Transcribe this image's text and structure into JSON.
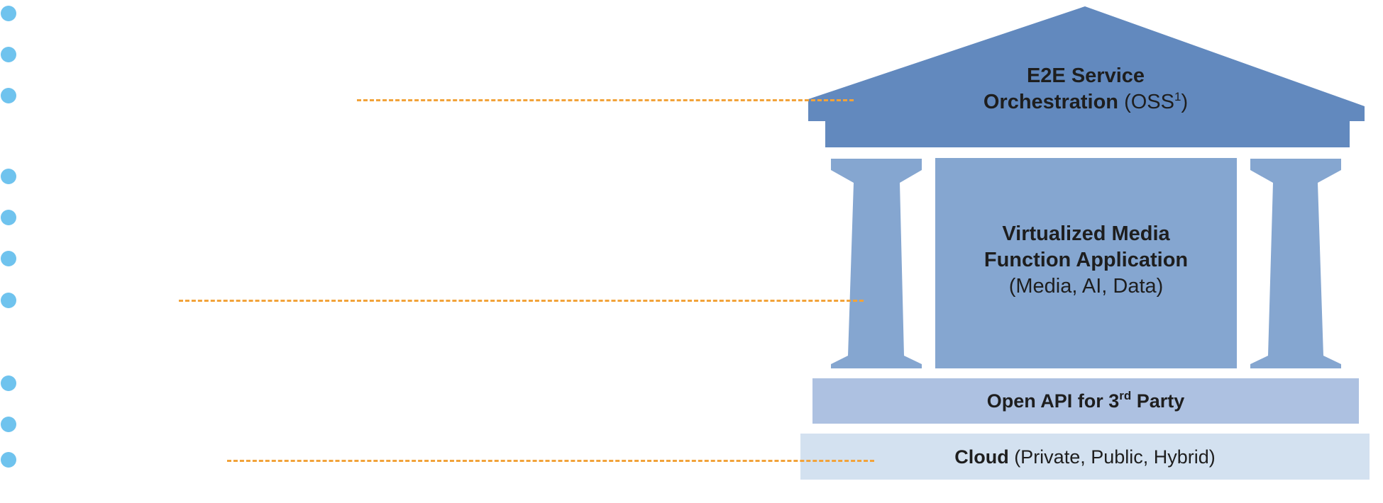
{
  "diagram": {
    "roof": {
      "title_line1": "E2E Service",
      "title_line2": "Orchestration",
      "title_suffix": " (OSS",
      "title_sup": "1",
      "title_close": ")"
    },
    "center": {
      "line1": "Virtualized Media",
      "line2": "Function Application",
      "line3": "(Media, AI, Data)"
    },
    "api": {
      "text_prefix": "Open API for 3",
      "text_sup": "rd",
      "text_suffix": " Party"
    },
    "cloud": {
      "bold": "Cloud",
      "rest": " (Private, Public, Hybrid)"
    }
  },
  "colors": {
    "bullet": "#6fc3ee",
    "connector": "#f2a33a",
    "roof": "#6289be",
    "pillar": "#85a6d0",
    "api_band": "#adc1e1",
    "cloud_band": "#d3e1f0"
  }
}
